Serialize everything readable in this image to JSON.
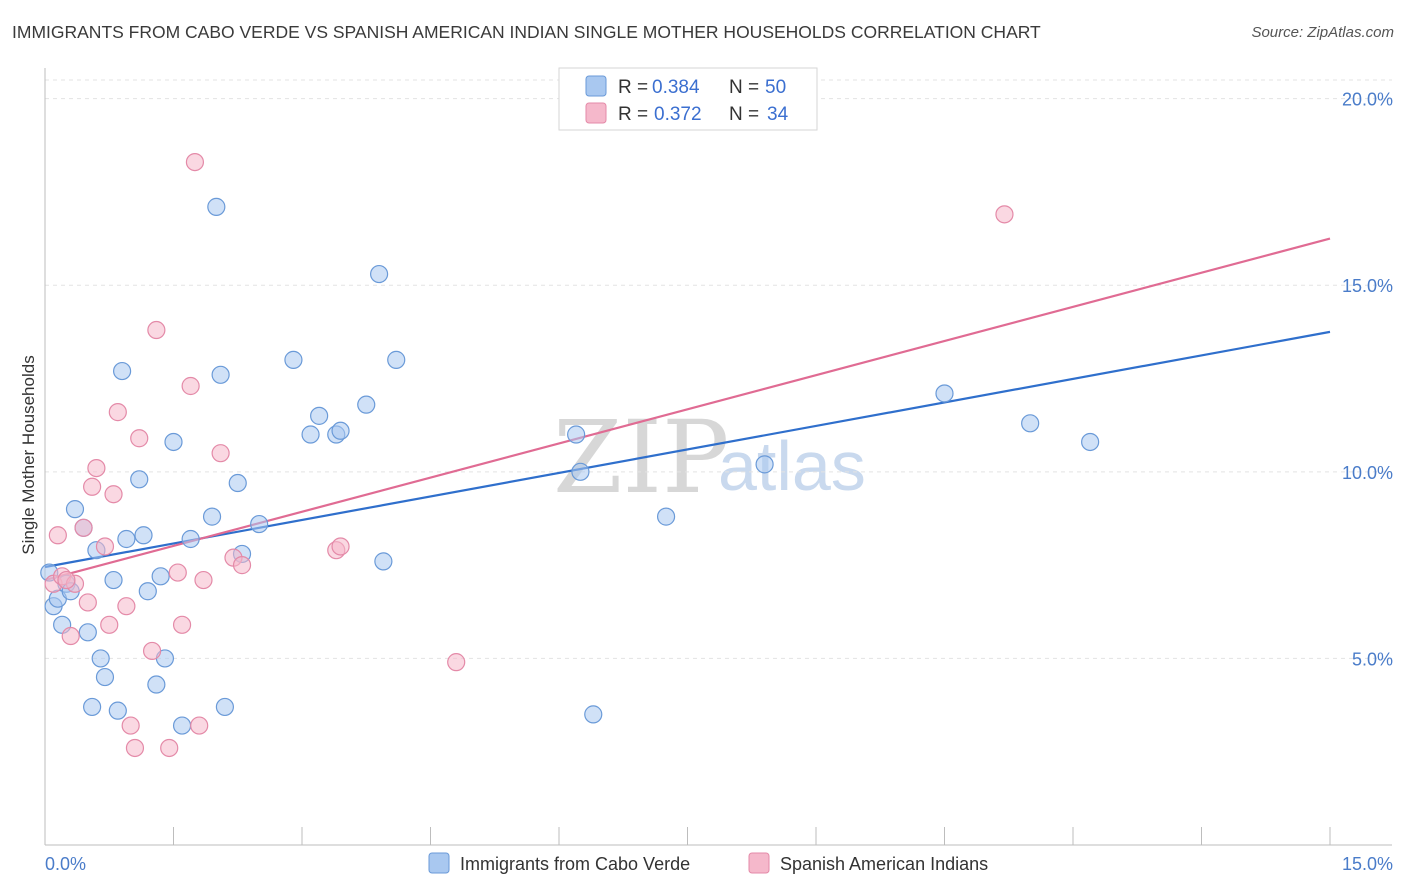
{
  "header": {
    "title": "IMMIGRANTS FROM CABO VERDE VS SPANISH AMERICAN INDIAN SINGLE MOTHER HOUSEHOLDS CORRELATION CHART",
    "source": "Source: ZipAtlas.com"
  },
  "watermark": {
    "zip": "ZIP",
    "atlas": "atlas"
  },
  "legend": {
    "rows": [
      {
        "r_label": "R =",
        "r_value": "0.384",
        "n_label": "N =",
        "n_value": "50",
        "color": "#a9c8f0"
      },
      {
        "r_label": "R =",
        "r_value": "0.372",
        "n_label": "N =",
        "n_value": "34",
        "color": "#f5b8cb"
      }
    ]
  },
  "chart_data": {
    "type": "scatter",
    "title": "IMMIGRANTS FROM CABO VERDE VS SPANISH AMERICAN INDIAN SINGLE MOTHER HOUSEHOLDS CORRELATION CHART",
    "xlabel": "",
    "ylabel": "Single Mother Households",
    "xlim": [
      0,
      15
    ],
    "ylim": [
      0,
      20.5
    ],
    "x_tick_labels": [
      "0.0%",
      "15.0%"
    ],
    "y_ticks": [
      5,
      10,
      15,
      20
    ],
    "y_tick_labels": [
      "5.0%",
      "10.0%",
      "15.0%",
      "20.0%"
    ],
    "series": [
      {
        "name": "Immigrants from Cabo Verde",
        "color": "#a9c8f0",
        "stroke": "#6a9ad8",
        "trend_color": "#2f6fcc",
        "trend": [
          [
            0,
            7.45
          ],
          [
            15,
            13.75
          ]
        ],
        "points": [
          [
            0.05,
            7.3
          ],
          [
            0.1,
            6.4
          ],
          [
            0.15,
            6.6
          ],
          [
            0.2,
            5.9
          ],
          [
            0.25,
            7.0
          ],
          [
            0.3,
            6.8
          ],
          [
            0.35,
            9.0
          ],
          [
            0.45,
            8.5
          ],
          [
            0.5,
            5.7
          ],
          [
            0.55,
            3.7
          ],
          [
            0.6,
            7.9
          ],
          [
            0.65,
            5.0
          ],
          [
            0.7,
            4.5
          ],
          [
            0.8,
            7.1
          ],
          [
            0.85,
            3.6
          ],
          [
            0.9,
            12.7
          ],
          [
            0.95,
            8.2
          ],
          [
            1.1,
            9.8
          ],
          [
            1.15,
            8.3
          ],
          [
            1.2,
            6.8
          ],
          [
            1.3,
            4.3
          ],
          [
            1.35,
            7.2
          ],
          [
            1.4,
            5.0
          ],
          [
            1.5,
            10.8
          ],
          [
            1.6,
            3.2
          ],
          [
            1.7,
            8.2
          ],
          [
            1.95,
            8.8
          ],
          [
            2.0,
            17.1
          ],
          [
            2.05,
            12.6
          ],
          [
            2.1,
            3.7
          ],
          [
            2.25,
            9.7
          ],
          [
            2.3,
            7.8
          ],
          [
            2.5,
            8.6
          ],
          [
            2.9,
            13.0
          ],
          [
            3.1,
            11.0
          ],
          [
            3.2,
            11.5
          ],
          [
            3.4,
            11.0
          ],
          [
            3.45,
            11.1
          ],
          [
            3.75,
            11.8
          ],
          [
            3.9,
            15.3
          ],
          [
            3.95,
            7.6
          ],
          [
            4.1,
            13.0
          ],
          [
            6.2,
            11.0
          ],
          [
            6.25,
            10.0
          ],
          [
            6.4,
            3.5
          ],
          [
            7.25,
            8.8
          ],
          [
            8.4,
            10.2
          ],
          [
            10.5,
            12.1
          ],
          [
            11.5,
            11.3
          ],
          [
            12.2,
            10.8
          ]
        ]
      },
      {
        "name": "Spanish American Indians",
        "color": "#f5b8cb",
        "stroke": "#e48aa8",
        "trend_color": "#e06b93",
        "trend": [
          [
            0,
            7.1
          ],
          [
            15,
            16.25
          ]
        ],
        "points": [
          [
            0.1,
            7.0
          ],
          [
            0.15,
            8.3
          ],
          [
            0.2,
            7.2
          ],
          [
            0.3,
            5.6
          ],
          [
            0.35,
            7.0
          ],
          [
            0.45,
            8.5
          ],
          [
            0.5,
            6.5
          ],
          [
            0.55,
            9.6
          ],
          [
            0.6,
            10.1
          ],
          [
            0.7,
            8.0
          ],
          [
            0.75,
            5.9
          ],
          [
            0.8,
            9.4
          ],
          [
            0.85,
            11.6
          ],
          [
            0.95,
            6.4
          ],
          [
            1.0,
            3.2
          ],
          [
            1.05,
            2.6
          ],
          [
            1.1,
            10.9
          ],
          [
            1.25,
            5.2
          ],
          [
            1.3,
            13.8
          ],
          [
            1.45,
            2.6
          ],
          [
            1.55,
            7.3
          ],
          [
            1.6,
            5.9
          ],
          [
            1.7,
            12.3
          ],
          [
            1.75,
            18.3
          ],
          [
            1.8,
            3.2
          ],
          [
            1.85,
            7.1
          ],
          [
            2.05,
            10.5
          ],
          [
            2.2,
            7.7
          ],
          [
            2.3,
            7.5
          ],
          [
            3.4,
            7.9
          ],
          [
            3.45,
            8.0
          ],
          [
            4.8,
            4.9
          ],
          [
            11.2,
            16.9
          ],
          [
            0.25,
            7.1
          ]
        ]
      }
    ]
  }
}
